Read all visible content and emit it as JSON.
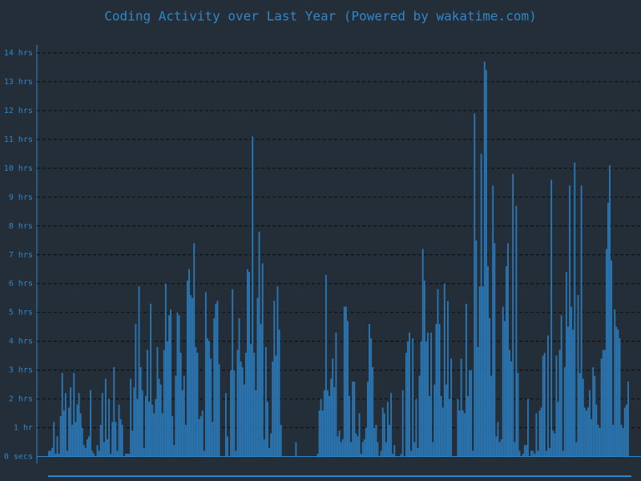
{
  "chart_data": {
    "type": "bar",
    "title": "Coding Activity over Last Year (Powered by wakatime.com)",
    "color": "#2a77b4",
    "grid": true,
    "ylim": [
      0,
      14
    ],
    "yticks": [
      {
        "value": 0,
        "label": "0 secs"
      },
      {
        "value": 1,
        "label": "1 hr"
      },
      {
        "value": 2,
        "label": "2 hrs"
      },
      {
        "value": 3,
        "label": "3 hrs"
      },
      {
        "value": 4,
        "label": "4 hrs"
      },
      {
        "value": 5,
        "label": "5 hrs"
      },
      {
        "value": 6,
        "label": "6 hrs"
      },
      {
        "value": 7,
        "label": "7 hrs"
      },
      {
        "value": 8,
        "label": "8 hrs"
      },
      {
        "value": 9,
        "label": "9 hrs"
      },
      {
        "value": 10,
        "label": "10 hrs"
      },
      {
        "value": 11,
        "label": "11 hrs"
      },
      {
        "value": 12,
        "label": "12 hrs"
      },
      {
        "value": 13,
        "label": "13 hrs"
      },
      {
        "value": 14,
        "label": "14 hrs"
      }
    ],
    "values": [
      0.2,
      0.2,
      0.3,
      1.2,
      0.1,
      0.7,
      0.1,
      1.4,
      2.9,
      1.6,
      2.2,
      0.2,
      1.7,
      2.4,
      1.1,
      2.9,
      1.2,
      1.8,
      2.2,
      1.5,
      1.0,
      0.4,
      0.3,
      0.6,
      0.7,
      2.3,
      0.2,
      0.1,
      0,
      0.4,
      0.2,
      1.1,
      2.2,
      0.5,
      2.7,
      0.6,
      2.0,
      0.1,
      1.2,
      3.1,
      1.2,
      0.2,
      1.8,
      1.3,
      1.1,
      0,
      0.1,
      0.1,
      0.1,
      2.7,
      0.9,
      2.4,
      4.6,
      2.0,
      5.9,
      3.1,
      2.3,
      0.3,
      2.1,
      3.7,
      1.9,
      5.3,
      1.8,
      1.5,
      2.0,
      3.8,
      2.7,
      2.5,
      1.5,
      3.7,
      6.0,
      4.0,
      4.9,
      5.1,
      1.4,
      0.4,
      2.8,
      5.0,
      4.9,
      3.6,
      2.3,
      2.8,
      1.1,
      6.1,
      6.5,
      5.6,
      5.5,
      7.4,
      3.8,
      3.6,
      1.3,
      1.4,
      1.6,
      0.2,
      5.7,
      4.1,
      4.0,
      3.4,
      1.2,
      4.8,
      5.3,
      5.4,
      3.2,
      0,
      0,
      0,
      2.2,
      0.7,
      0,
      3.0,
      5.8,
      3.0,
      0.2,
      3.7,
      4.8,
      3.3,
      3.1,
      2.5,
      3.6,
      6.5,
      6.4,
      3.9,
      11.1,
      3.6,
      2.3,
      5.5,
      7.8,
      4.6,
      6.7,
      0.6,
      3.8,
      1.9,
      0.3,
      0.8,
      3.3,
      5.4,
      3.5,
      5.9,
      4.4,
      1.1,
      0,
      0,
      0,
      0,
      0,
      0,
      0,
      0,
      0.5,
      0,
      0,
      0,
      0,
      0,
      0,
      0,
      0,
      0,
      0,
      0,
      0,
      0.1,
      1.6,
      2.0,
      1.6,
      2.3,
      6.3,
      2.3,
      2.1,
      2.7,
      3.4,
      2.4,
      4.3,
      0.7,
      0.9,
      0.5,
      0.6,
      5.2,
      5.2,
      4.7,
      2.1,
      0.5,
      2.6,
      2.6,
      0.8,
      0.7,
      1.5,
      0.1,
      0.5,
      0.6,
      1.0,
      2.6,
      4.6,
      4.1,
      3.1,
      1.0,
      1.1,
      0.5,
      0,
      0.2,
      1.7,
      1.5,
      0.5,
      1.9,
      1.1,
      2.2,
      0.1,
      0.4,
      0,
      0,
      0,
      0.1,
      2.3,
      0,
      3.6,
      4.0,
      4.3,
      0.2,
      4.1,
      0.5,
      2.0,
      0.3,
      2.8,
      4.0,
      7.2,
      6.1,
      4.0,
      4.3,
      2.1,
      4.3,
      0.5,
      2.5,
      4.6,
      5.8,
      4.6,
      2.1,
      1.7,
      6.0,
      2.5,
      5.4,
      2.0,
      3.4,
      0,
      0,
      0,
      2.0,
      1.6,
      3.4,
      1.6,
      1.5,
      5.3,
      2.1,
      3.0,
      3.0,
      0.2,
      11.9,
      7.5,
      3.8,
      5.9,
      10.5,
      5.9,
      13.7,
      13.4,
      6.6,
      4.8,
      2.8,
      9.4,
      7.4,
      0.7,
      1.2,
      0.5,
      0.6,
      5.2,
      4.7,
      6.6,
      7.4,
      3.7,
      3.3,
      9.8,
      0.5,
      8.7,
      2.9,
      0.2,
      0,
      0.1,
      0.4,
      0.4,
      2.0,
      0,
      0.2,
      0.2,
      0.1,
      1.5,
      0.2,
      1.6,
      1.7,
      3.5,
      3.6,
      0.2,
      4.2,
      0.3,
      9.6,
      0.9,
      0.8,
      3.5,
      1.9,
      3.7,
      4.9,
      0.2,
      3.1,
      6.4,
      4.5,
      9.4,
      5.2,
      4.4,
      10.2,
      0.5,
      5.6,
      2.9,
      9.4,
      2.7,
      1.7,
      1.6,
      1.7,
      2.3,
      1.3,
      3.1,
      2.8,
      1.8,
      1.1,
      1.0,
      3.4,
      3.7,
      3.7,
      7.2,
      8.8,
      10.1,
      6.8,
      1.1,
      5.1,
      4.5,
      4.4,
      4.1,
      1.1,
      1.0,
      1.7,
      1.8,
      2.6
    ]
  }
}
